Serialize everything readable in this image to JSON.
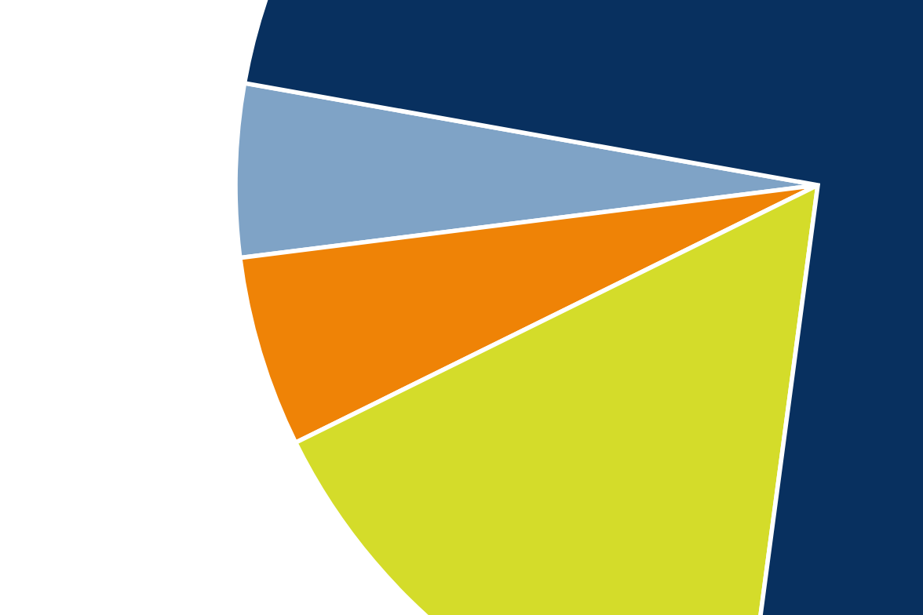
{
  "chart_data": {
    "type": "pie",
    "categories": [
      null,
      null,
      null,
      null
    ],
    "values": [
      4.8,
      5.3,
      15.6,
      74.3
    ],
    "colors": [
      "#7fa3c6",
      "#ef8306",
      "#d4dc2a",
      "#08305f"
    ]
  }
}
